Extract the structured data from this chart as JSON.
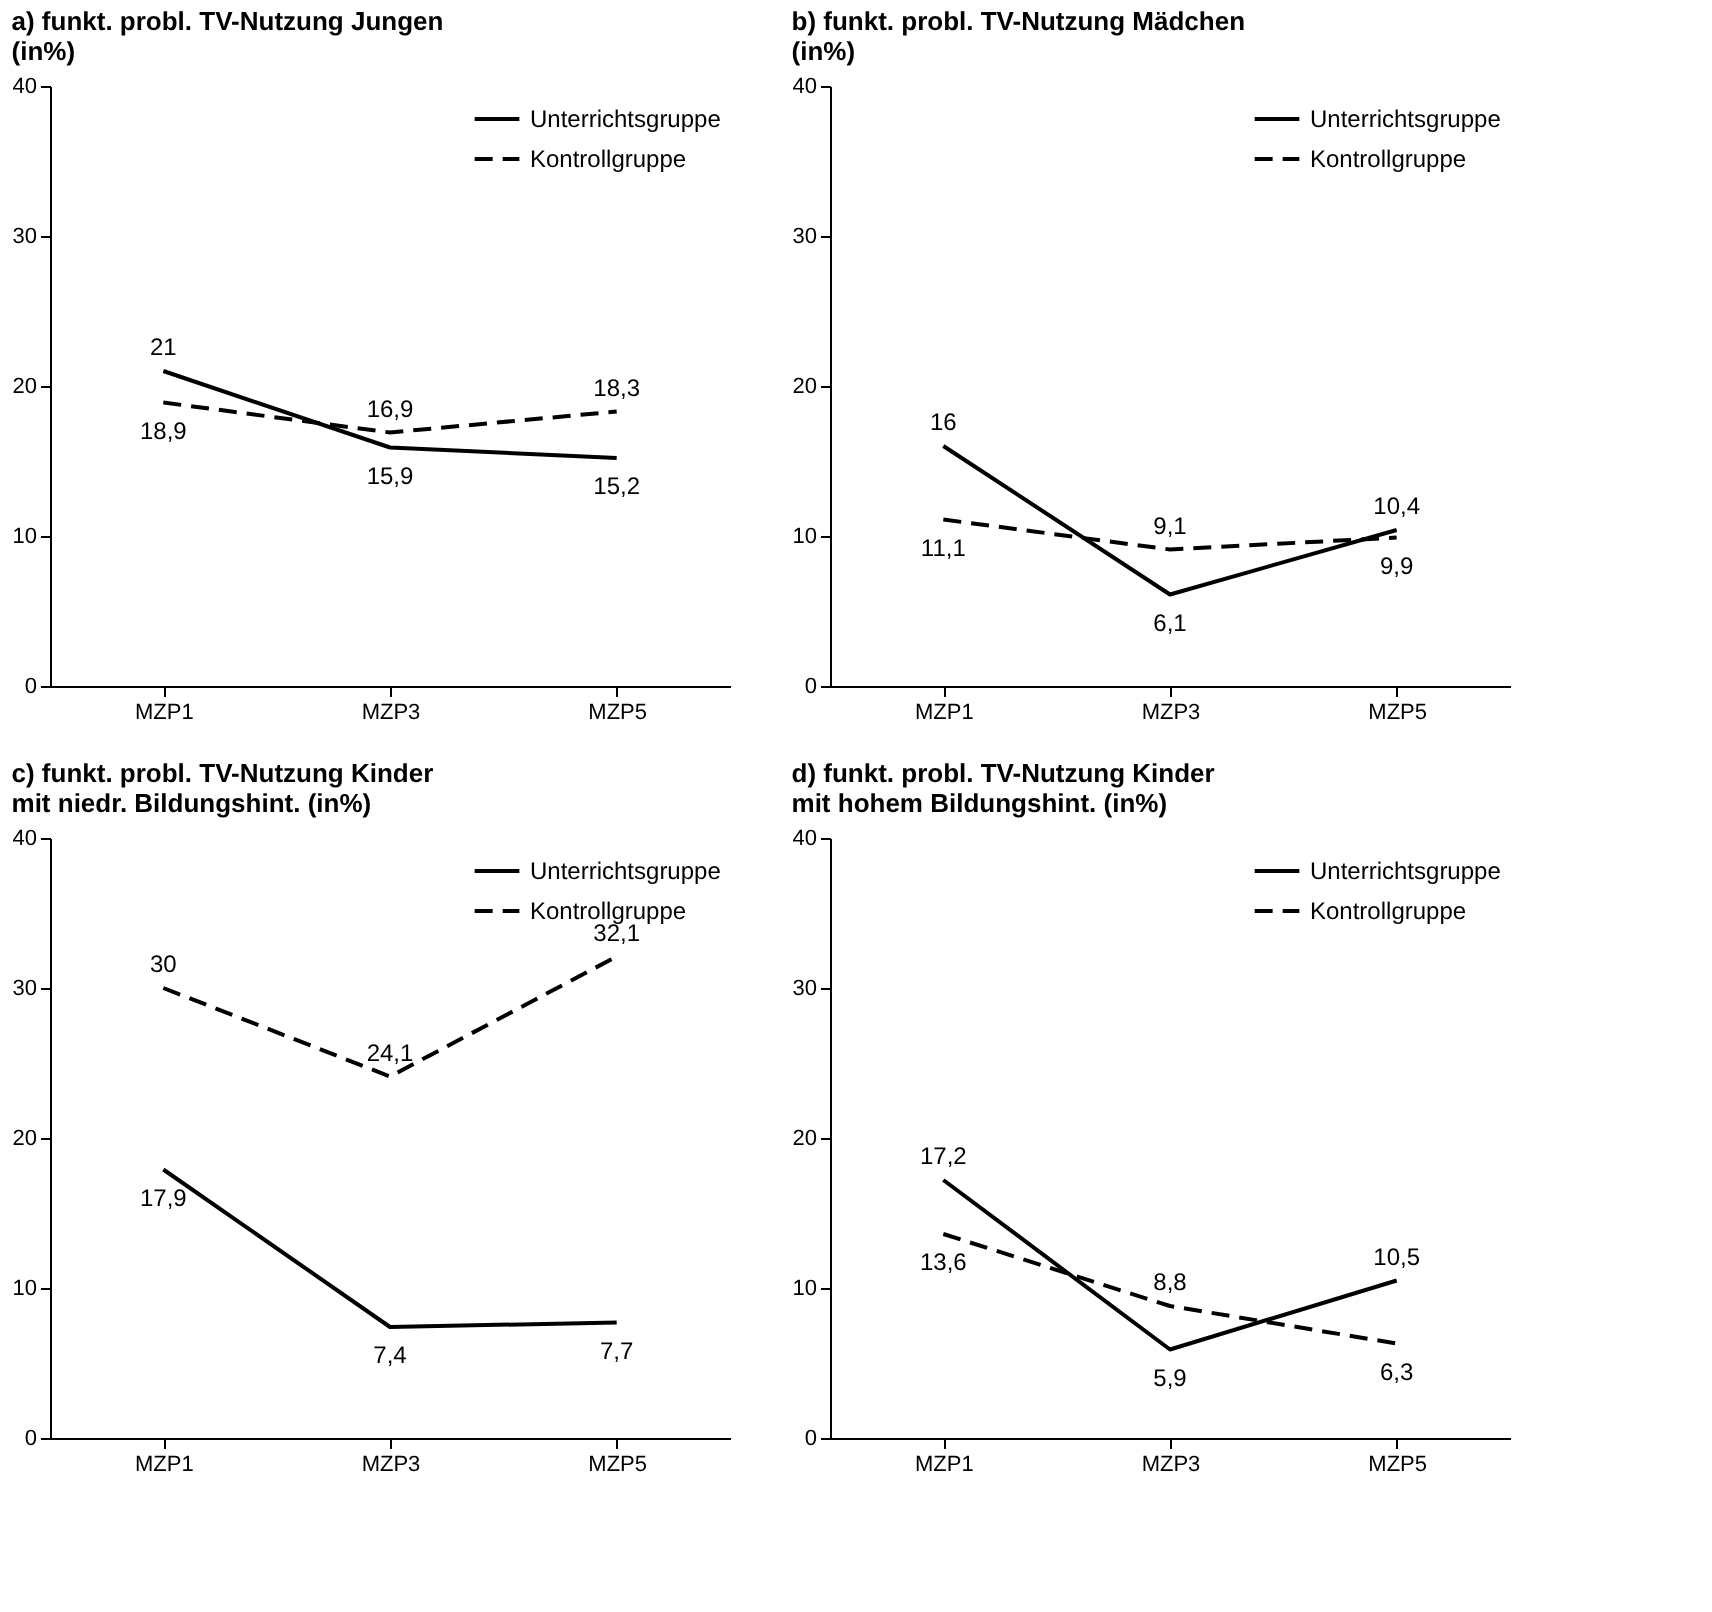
{
  "chart_data": [
    {
      "type": "line",
      "title": "a) funkt. probl. TV-Nutzung Jungen\n(in%)",
      "categories": [
        "MZP1",
        "MZP3",
        "MZP5"
      ],
      "ylim": [
        0,
        40
      ],
      "yticks": [
        0,
        10,
        20,
        30,
        40
      ],
      "grid": false,
      "legend": "top right",
      "series": [
        {
          "name": "Unterrichtsgruppe",
          "color": "#000000",
          "line_style": "solid",
          "values": [
            21,
            15.9,
            15.2
          ],
          "value_labels": [
            "21",
            "15,9",
            "15,2"
          ]
        },
        {
          "name": "Kontrollgruppe",
          "color": "#000000",
          "line_style": "dashed",
          "values": [
            18.9,
            16.9,
            18.3
          ],
          "value_labels": [
            "18,9",
            "16,9",
            "18,3"
          ]
        }
      ]
    },
    {
      "type": "line",
      "title": "b) funkt. probl. TV-Nutzung Mädchen\n(in%)",
      "categories": [
        "MZP1",
        "MZP3",
        "MZP5"
      ],
      "ylim": [
        0,
        40
      ],
      "yticks": [
        0,
        10,
        20,
        30,
        40
      ],
      "grid": false,
      "legend": "top right",
      "series": [
        {
          "name": "Unterrichtsgruppe",
          "color": "#000000",
          "line_style": "solid",
          "values": [
            16,
            6.1,
            10.4
          ],
          "value_labels": [
            "16",
            "6,1",
            "10,4"
          ]
        },
        {
          "name": "Kontrollgruppe",
          "color": "#000000",
          "line_style": "dashed",
          "values": [
            11.1,
            9.1,
            9.9
          ],
          "value_labels": [
            "11,1",
            "9,1",
            "9,9"
          ]
        }
      ]
    },
    {
      "type": "line",
      "title": "c)  funkt. probl. TV-Nutzung Kinder\nmit niedr. Bildungshint. (in%)",
      "categories": [
        "MZP1",
        "MZP3",
        "MZP5"
      ],
      "ylim": [
        0,
        40
      ],
      "yticks": [
        0,
        10,
        20,
        30,
        40
      ],
      "grid": false,
      "legend": "top right",
      "series": [
        {
          "name": "Unterrichtsgruppe",
          "color": "#000000",
          "line_style": "solid",
          "values": [
            17.9,
            7.4,
            7.7
          ],
          "value_labels": [
            "17,9",
            "7,4",
            "7,7"
          ]
        },
        {
          "name": "Kontrollgruppe",
          "color": "#000000",
          "line_style": "dashed",
          "values": [
            30,
            24.1,
            32.1
          ],
          "value_labels": [
            "30",
            "24,1",
            "32,1"
          ]
        }
      ]
    },
    {
      "type": "line",
      "title": "d)  funkt. probl. TV-Nutzung Kinder\nmit hohem Bildungshint. (in%)",
      "categories": [
        "MZP1",
        "MZP3",
        "MZP5"
      ],
      "ylim": [
        0,
        40
      ],
      "yticks": [
        0,
        10,
        20,
        30,
        40
      ],
      "grid": false,
      "legend": "top right",
      "series": [
        {
          "name": "Unterrichtsgruppe",
          "color": "#000000",
          "line_style": "solid",
          "values": [
            17.2,
            5.9,
            10.5
          ],
          "value_labels": [
            "17,2",
            "5,9",
            "10,5"
          ]
        },
        {
          "name": "Kontrollgruppe",
          "color": "#000000",
          "line_style": "dashed",
          "values": [
            13.6,
            8.8,
            6.3
          ],
          "value_labels": [
            "13,6",
            "8,8",
            "6,3"
          ]
        }
      ]
    }
  ]
}
